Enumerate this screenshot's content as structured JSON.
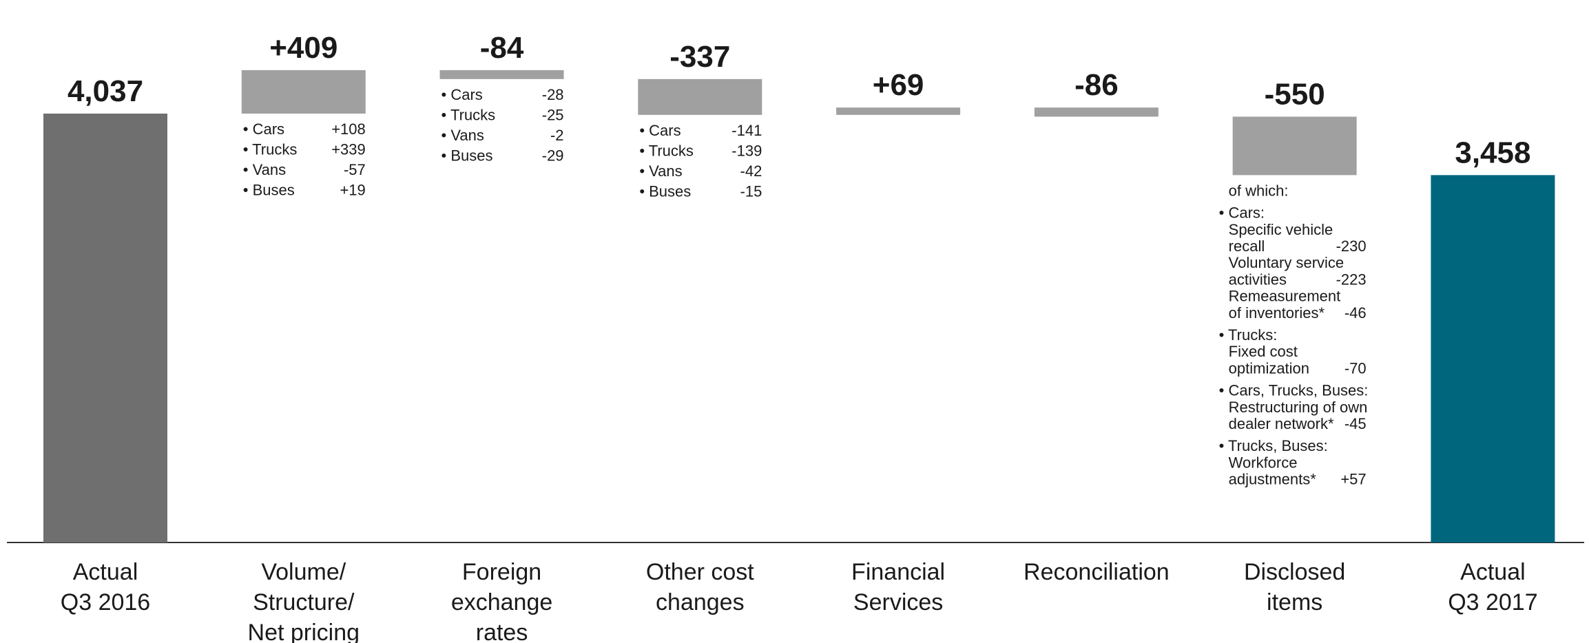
{
  "chart_data": {
    "type": "bar",
    "subtype": "waterfall",
    "categories": [
      [
        "Actual",
        "Q3 2016"
      ],
      [
        "Volume/",
        "Structure/",
        "Net pricing"
      ],
      [
        "Foreign",
        "exchange",
        "rates"
      ],
      [
        "Other cost",
        "changes"
      ],
      [
        "Financial",
        "Services"
      ],
      [
        "Reconciliation"
      ],
      [
        "Disclosed",
        "items"
      ],
      [
        "Actual",
        "Q3 2017"
      ]
    ],
    "values": [
      4037,
      409,
      -84,
      -337,
      69,
      -86,
      -550,
      3458
    ],
    "value_labels": [
      "4,037",
      "+409",
      "-84",
      "-337",
      "+69",
      "-86",
      "-550",
      "3,458"
    ],
    "kinds": [
      "total",
      "delta",
      "delta",
      "delta",
      "delta",
      "delta",
      "delta",
      "total"
    ],
    "colors": {
      "start_total": "#6f6f6f",
      "delta": "#a0a0a0",
      "end_total": "#00667e",
      "axis": "#333333"
    },
    "breakdowns": [
      null,
      [
        [
          "Cars",
          "+108"
        ],
        [
          "Trucks",
          "+339"
        ],
        [
          "Vans",
          "-57"
        ],
        [
          "Buses",
          "+19"
        ]
      ],
      [
        [
          "Cars",
          "-28"
        ],
        [
          "Trucks",
          "-25"
        ],
        [
          "Vans",
          "-2"
        ],
        [
          "Buses",
          "-29"
        ]
      ],
      [
        [
          "Cars",
          "-141"
        ],
        [
          "Trucks",
          "-139"
        ],
        [
          "Vans",
          "-42"
        ],
        [
          "Buses",
          "-15"
        ]
      ],
      null,
      null,
      null,
      null
    ],
    "disclosed_details": {
      "heading": "of which:",
      "groups": [
        {
          "title": "Cars:",
          "items": [
            {
              "lines": [
                "Specific vehicle",
                "recall"
              ],
              "value": "-230"
            },
            {
              "lines": [
                "Voluntary service",
                "activities"
              ],
              "value": "-223"
            },
            {
              "lines": [
                "Remeasurement",
                "of inventories*"
              ],
              "value": "-46"
            }
          ]
        },
        {
          "title": "Trucks:",
          "items": [
            {
              "lines": [
                "Fixed cost",
                "optimization"
              ],
              "value": "-70"
            }
          ]
        },
        {
          "title": "Cars, Trucks, Buses:",
          "items": [
            {
              "lines": [
                "Restructuring of own",
                "dealer network*"
              ],
              "value": "-45"
            }
          ]
        },
        {
          "title": "Trucks, Buses:",
          "items": [
            {
              "lines": [
                "Workforce",
                "adjustments*"
              ],
              "value": "+57"
            }
          ]
        }
      ]
    }
  }
}
